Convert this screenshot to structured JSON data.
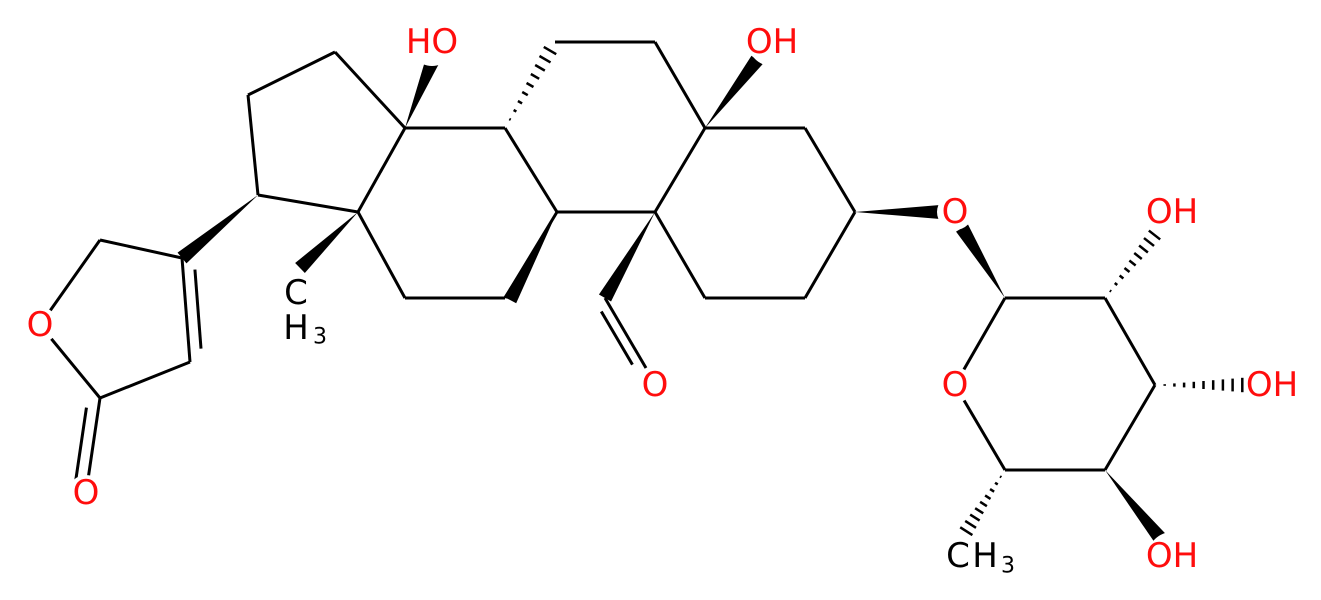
{
  "labels": [
    "HO",
    "OH",
    "O",
    "O",
    "O",
    "O",
    "OH",
    "O",
    "OH",
    "OH"
  ],
  "methyls": [
    {
      "element": "C",
      "hydrogen": "H",
      "count": "3"
    },
    {
      "element": "C",
      "hydrogen": "H",
      "count": "3"
    }
  ]
}
